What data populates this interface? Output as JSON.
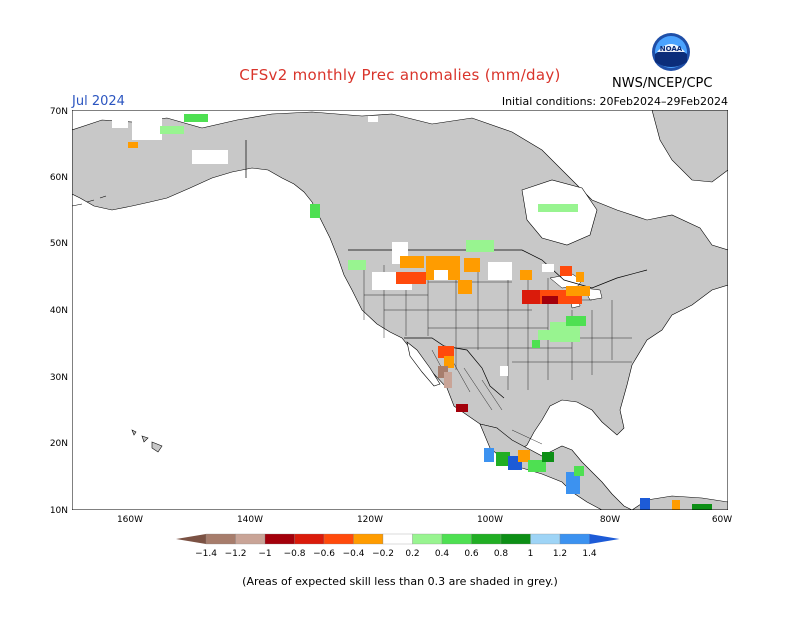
{
  "header": {
    "title": "CFSv2 monthly Prec anomalies (mm/day)",
    "month": "Jul 2024",
    "agency": "NWS/NCEP/CPC",
    "init": "Initial conditions: 20Feb2024–29Feb2024",
    "logo_text": "NOAA"
  },
  "map": {
    "lon_range": [
      -170,
      -60
    ],
    "lat_range": [
      10,
      70
    ],
    "lat_ticks": [
      "10N",
      "20N",
      "30N",
      "40N",
      "50N",
      "60N",
      "70N"
    ],
    "lon_ticks": [
      "160W",
      "140W",
      "120W",
      "100W",
      "80W",
      "60W"
    ],
    "colors": {
      "land_low_skill": "#c8c8c8",
      "ocean": "#ffffff",
      "outline": "#000000"
    }
  },
  "colorbar": {
    "labels": [
      "−1.4",
      "−1.2",
      "−1",
      "−0.8",
      "−0.6",
      "−0.4",
      "−0.2",
      "0.2",
      "0.4",
      "0.6",
      "0.8",
      "1",
      "1.2",
      "1.4"
    ],
    "colors": [
      "#7b5244",
      "#a77d6c",
      "#c9a497",
      "#a3000b",
      "#da1b0b",
      "#ff4a0c",
      "#ff9c00",
      "#ffffff",
      "#98f490",
      "#4ee052",
      "#21ae24",
      "#0d8f16",
      "#9ed4f6",
      "#3c92f0",
      "#1d5bd7"
    ]
  },
  "footnote": "(Areas of expected skill less than 0.3 are shaded in grey.)"
}
